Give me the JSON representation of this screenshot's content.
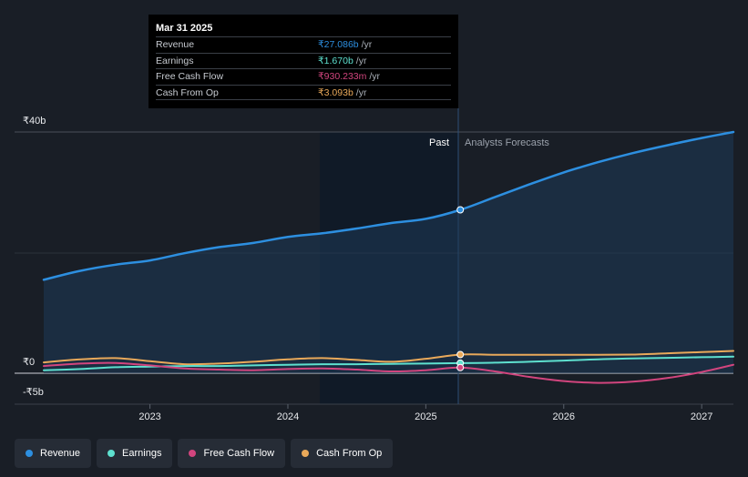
{
  "tooltip": {
    "date": "Mar 31 2025",
    "rows": [
      {
        "label": "Revenue",
        "value": "₹27.086b",
        "unit": "/yr",
        "color": "#2d8fe0"
      },
      {
        "label": "Earnings",
        "value": "₹1.670b",
        "unit": "/yr",
        "color": "#5ee0cf"
      },
      {
        "label": "Free Cash Flow",
        "value": "₹930.233m",
        "unit": "/yr",
        "color": "#d2457e"
      },
      {
        "label": "Cash From Op",
        "value": "₹3.093b",
        "unit": "/yr",
        "color": "#e9a95a"
      }
    ]
  },
  "section_labels": {
    "past": "Past",
    "forecast": "Analysts Forecasts"
  },
  "legend": [
    {
      "label": "Revenue",
      "color": "#2d8fe0"
    },
    {
      "label": "Earnings",
      "color": "#5ee0cf"
    },
    {
      "label": "Free Cash Flow",
      "color": "#d2457e"
    },
    {
      "label": "Cash From Op",
      "color": "#e9a95a"
    }
  ],
  "chart_data": {
    "type": "line",
    "title": "",
    "xlabel": "",
    "ylabel": "",
    "x_unit": "year",
    "xlim": [
      2022.23,
      2027.23
    ],
    "ylim": [
      -5,
      40
    ],
    "y_ticks": [
      {
        "value": 40,
        "label": "₹40b"
      },
      {
        "value": 0,
        "label": "₹0"
      },
      {
        "value": -5,
        "label": "-₹5b"
      }
    ],
    "x_ticks": [
      {
        "value": 2023,
        "label": "2023"
      },
      {
        "value": 2024,
        "label": "2024"
      },
      {
        "value": 2025,
        "label": "2025"
      },
      {
        "value": 2026,
        "label": "2026"
      },
      {
        "value": 2027,
        "label": "2027"
      }
    ],
    "past_start": 2024.25,
    "forecast_start": 2025.25,
    "marker_x": 2025.25,
    "series": [
      {
        "name": "Revenue",
        "color": "#2d8fe0",
        "area": true,
        "points": [
          [
            2022.23,
            15.5
          ],
          [
            2022.5,
            17.0
          ],
          [
            2022.75,
            18.0
          ],
          [
            2023.0,
            18.7
          ],
          [
            2023.25,
            19.9
          ],
          [
            2023.5,
            20.9
          ],
          [
            2023.75,
            21.6
          ],
          [
            2024.0,
            22.6
          ],
          [
            2024.25,
            23.2
          ],
          [
            2024.5,
            24.0
          ],
          [
            2024.75,
            24.9
          ],
          [
            2025.0,
            25.6
          ],
          [
            2025.25,
            27.09
          ],
          [
            2025.5,
            29.2
          ],
          [
            2025.75,
            31.3
          ],
          [
            2026.0,
            33.3
          ],
          [
            2026.25,
            35.0
          ],
          [
            2026.5,
            36.5
          ],
          [
            2026.75,
            37.8
          ],
          [
            2027.0,
            39.0
          ],
          [
            2027.23,
            40.0
          ]
        ]
      },
      {
        "name": "Cash From Op",
        "color": "#e9a95a",
        "area": false,
        "points": [
          [
            2022.23,
            1.8
          ],
          [
            2022.5,
            2.3
          ],
          [
            2022.75,
            2.5
          ],
          [
            2023.0,
            2.0
          ],
          [
            2023.25,
            1.5
          ],
          [
            2023.5,
            1.6
          ],
          [
            2023.75,
            1.9
          ],
          [
            2024.0,
            2.3
          ],
          [
            2024.25,
            2.5
          ],
          [
            2024.5,
            2.2
          ],
          [
            2024.75,
            1.9
          ],
          [
            2025.0,
            2.4
          ],
          [
            2025.25,
            3.09
          ],
          [
            2025.5,
            3.07
          ],
          [
            2025.75,
            3.05
          ],
          [
            2026.0,
            3.05
          ],
          [
            2026.25,
            3.05
          ],
          [
            2026.5,
            3.1
          ],
          [
            2026.75,
            3.3
          ],
          [
            2027.0,
            3.5
          ],
          [
            2027.23,
            3.7
          ]
        ]
      },
      {
        "name": "Earnings",
        "color": "#5ee0cf",
        "area": false,
        "points": [
          [
            2022.23,
            0.5
          ],
          [
            2022.5,
            0.7
          ],
          [
            2022.75,
            1.0
          ],
          [
            2023.0,
            1.1
          ],
          [
            2023.25,
            1.2
          ],
          [
            2023.5,
            1.2
          ],
          [
            2023.75,
            1.3
          ],
          [
            2024.0,
            1.4
          ],
          [
            2024.25,
            1.5
          ],
          [
            2024.5,
            1.5
          ],
          [
            2024.75,
            1.55
          ],
          [
            2025.0,
            1.6
          ],
          [
            2025.25,
            1.67
          ],
          [
            2025.5,
            1.75
          ],
          [
            2025.75,
            1.9
          ],
          [
            2026.0,
            2.1
          ],
          [
            2026.25,
            2.3
          ],
          [
            2026.5,
            2.45
          ],
          [
            2026.75,
            2.55
          ],
          [
            2027.0,
            2.65
          ],
          [
            2027.23,
            2.75
          ]
        ]
      },
      {
        "name": "Free Cash Flow",
        "color": "#d2457e",
        "area": false,
        "points": [
          [
            2022.23,
            1.2
          ],
          [
            2022.5,
            1.6
          ],
          [
            2022.75,
            1.7
          ],
          [
            2023.0,
            1.3
          ],
          [
            2023.25,
            0.8
          ],
          [
            2023.5,
            0.6
          ],
          [
            2023.75,
            0.5
          ],
          [
            2024.0,
            0.7
          ],
          [
            2024.25,
            0.8
          ],
          [
            2024.5,
            0.6
          ],
          [
            2024.75,
            0.3
          ],
          [
            2025.0,
            0.5
          ],
          [
            2025.25,
            0.93
          ],
          [
            2025.5,
            0.3
          ],
          [
            2025.75,
            -0.6
          ],
          [
            2026.0,
            -1.3
          ],
          [
            2026.25,
            -1.6
          ],
          [
            2026.5,
            -1.4
          ],
          [
            2026.75,
            -0.8
          ],
          [
            2027.0,
            0.2
          ],
          [
            2027.23,
            1.4
          ]
        ]
      }
    ]
  }
}
